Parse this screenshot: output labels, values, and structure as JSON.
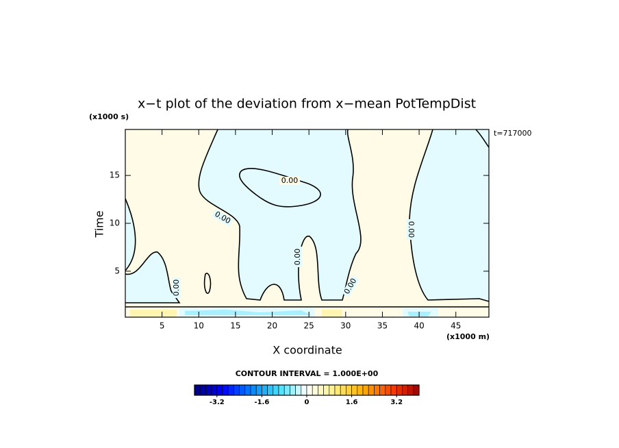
{
  "chart_data": {
    "type": "contour",
    "title": "x−t plot of the deviation from x−mean PotTempDist",
    "xlabel": "X coordinate",
    "ylabel": "Time",
    "xunit": "(x1000 m)",
    "yunit": "(x1000 s)",
    "annotation": "t=717000",
    "xlim": [
      0,
      49.5
    ],
    "ylim": [
      0.2,
      19.8
    ],
    "xticks": [
      5,
      10,
      15,
      20,
      25,
      30,
      35,
      40,
      45
    ],
    "yticks": [
      5,
      10,
      15
    ],
    "contour_labels": [
      "0.00",
      "0.00",
      "0.00",
      "0.00",
      "0.00",
      "0.00"
    ],
    "colorbar": {
      "title": "CONTOUR INTERVAL = 1.000E+00",
      "lim": [
        -4,
        4
      ],
      "ticks": [
        -3.2,
        -1.6,
        0,
        1.6,
        3.2
      ],
      "colors": [
        "#000080",
        "#0000ff",
        "#0080ff",
        "#40e0ff",
        "#ffffff",
        "#fff080",
        "#ffb000",
        "#ff4000",
        "#a00000"
      ]
    }
  }
}
